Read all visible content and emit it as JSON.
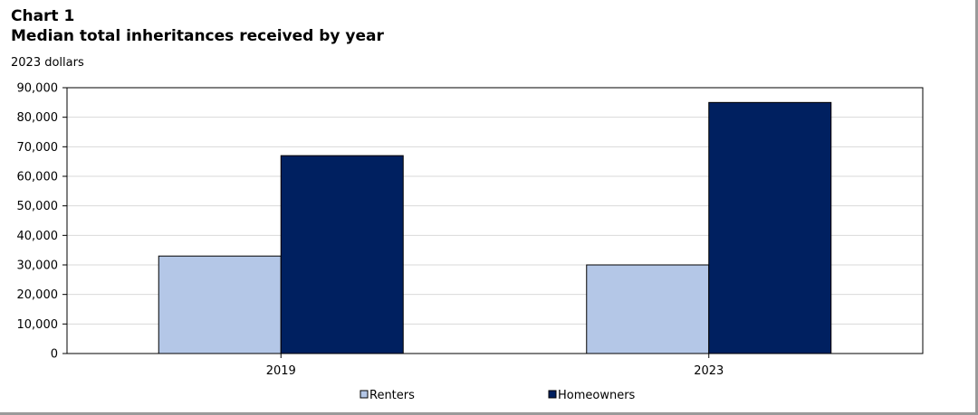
{
  "chart_data": {
    "type": "bar",
    "title": "Chart 1",
    "subtitle": "Median total inheritances received by year",
    "unit_label": "2023 dollars",
    "categories": [
      "2019",
      "2023"
    ],
    "series": [
      {
        "name": "Renters",
        "values": [
          33000,
          30000
        ],
        "color": "#b4c7e7"
      },
      {
        "name": "Homeowners",
        "values": [
          67000,
          85000
        ],
        "color": "#002060"
      }
    ],
    "ylim": [
      0,
      90000
    ],
    "yticks": [
      0,
      10000,
      20000,
      30000,
      40000,
      50000,
      60000,
      70000,
      80000,
      90000
    ],
    "ytick_labels": [
      "0",
      "10,000",
      "20,000",
      "30,000",
      "40,000",
      "50,000",
      "60,000",
      "70,000",
      "80,000",
      "90,000"
    ],
    "grid": true,
    "legend_position": "bottom"
  }
}
